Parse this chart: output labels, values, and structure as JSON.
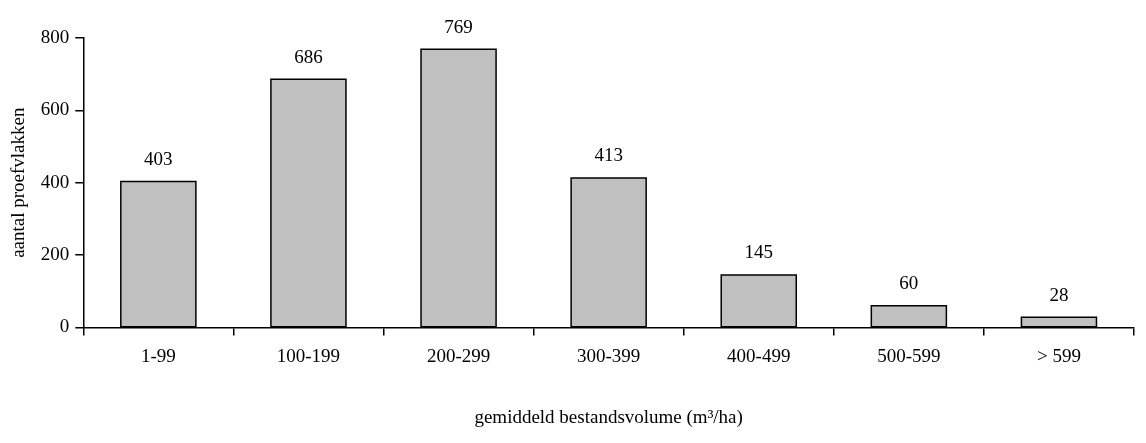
{
  "chart_data": {
    "type": "bar",
    "xlabel": "gemiddeld bestandsvolume (m³/ha)",
    "ylabel": "aantal proefvlakken",
    "categories": [
      "1-99",
      "100-199",
      "200-299",
      "300-399",
      "400-499",
      "500-599",
      "> 599"
    ],
    "values": [
      403,
      686,
      769,
      413,
      145,
      60,
      28
    ],
    "color": "#c0c0c0",
    "ylim": [
      0,
      800
    ],
    "yticks": [
      0,
      200,
      400,
      600,
      800
    ],
    "grid": false,
    "legend": false,
    "data_labels": true
  }
}
